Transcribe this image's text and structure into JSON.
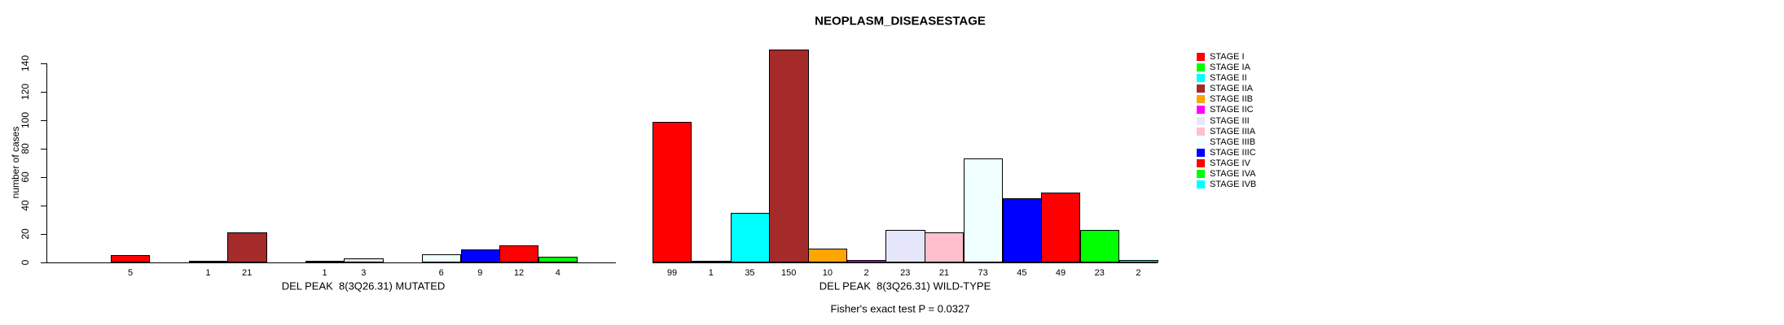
{
  "page": {
    "background": "#ffffff",
    "text_color": "#000000"
  },
  "chart_data": {
    "type": "bar",
    "title": "NEOPLASM_DISEASESTAGE",
    "ylabel": "number of cases",
    "ylim": [
      0,
      150
    ],
    "yticks": [
      0,
      20,
      40,
      60,
      80,
      100,
      120,
      140
    ],
    "grid": false,
    "legend_position": "right",
    "categories": [
      "STAGE I",
      "STAGE IA",
      "STAGE II",
      "STAGE IIA",
      "STAGE IIB",
      "STAGE IIC",
      "STAGE III",
      "STAGE IIIA",
      "STAGE IIIB",
      "STAGE IIIC",
      "STAGE IV",
      "STAGE IVA",
      "STAGE IVB"
    ],
    "colors": [
      "#FF0000",
      "#00FF00",
      "#00FFFF",
      "#A52A2A",
      "#FFA500",
      "#FF00FF",
      "#E6E6FA",
      "#FFC0CB",
      "#F0FFFF",
      "#0000FF",
      "#FF0000",
      "#00FF00",
      "#00FFFF"
    ],
    "series": [
      {
        "name": "DEL PEAK  8(3Q26.31) MUTATED",
        "values": [
          5,
          0,
          1,
          21,
          0,
          1,
          3,
          0,
          6,
          9,
          12,
          4,
          0
        ]
      },
      {
        "name": "DEL PEAK  8(3Q26.31) WILD-TYPE",
        "values": [
          99,
          1,
          35,
          150,
          10,
          2,
          23,
          21,
          73,
          45,
          49,
          23,
          2
        ]
      }
    ],
    "bar_value_labels": "value printed under every bar with value > 0",
    "footnote": "Fisher's exact test P = 0.0327"
  }
}
